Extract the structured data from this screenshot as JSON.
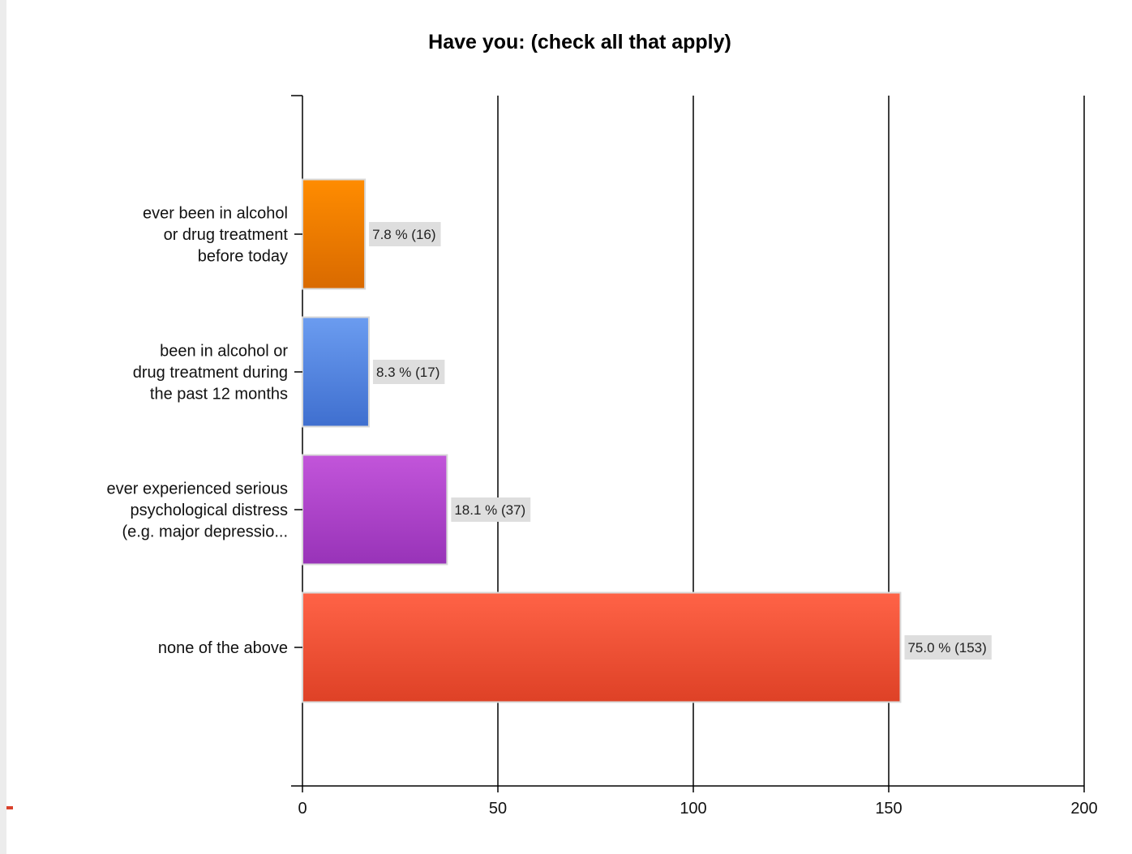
{
  "chart_data": {
    "type": "bar",
    "orientation": "horizontal",
    "title": "Have you: (check all that apply)",
    "xlabel": "",
    "ylabel": "",
    "xlim": [
      0,
      200
    ],
    "x_ticks": [
      "0",
      "50",
      "100",
      "150",
      "200"
    ],
    "grid": "vertical",
    "legend": "none",
    "categories": [
      [
        "ever been in alcohol",
        "or drug treatment",
        "before today"
      ],
      [
        "been in alcohol or",
        "drug treatment during",
        "the past 12 months"
      ],
      [
        "ever experienced serious",
        "psychological distress",
        "(e.g. major depressio..."
      ],
      [
        "none of the above"
      ]
    ],
    "values": [
      16,
      17,
      37,
      153
    ],
    "percent_labels": [
      "7.8 % (16)",
      "8.3 % (17)",
      "18.1 % (37)",
      "75.0 % (153)"
    ],
    "colors": [
      [
        "#ff8c00",
        "#d96a00"
      ],
      [
        "#6b9cf0",
        "#3f6fcf"
      ],
      [
        "#c255da",
        "#9833b8"
      ],
      [
        "#ff6347",
        "#de4126"
      ]
    ]
  }
}
